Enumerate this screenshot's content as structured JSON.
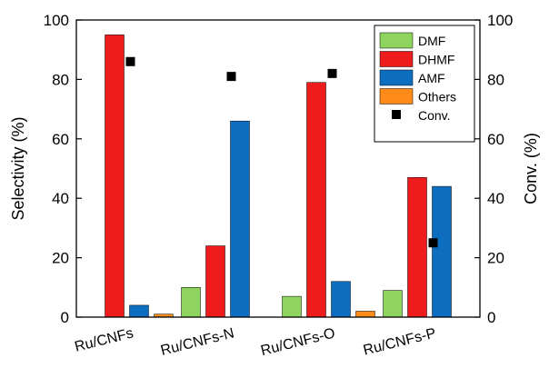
{
  "chart_data": {
    "type": "bar",
    "categories": [
      "Ru/CNFs",
      "Ru/CNFs-N",
      "Ru/CNFs-O",
      "Ru/CNFs-P"
    ],
    "series": [
      {
        "name": "DMF",
        "color": "#8fd45f",
        "values": [
          0,
          10,
          7,
          9
        ]
      },
      {
        "name": "DHMF",
        "color": "#ee1c1c",
        "values": [
          95,
          24,
          79,
          47
        ]
      },
      {
        "name": "AMF",
        "color": "#0d6ebf",
        "values": [
          4,
          66,
          12,
          44
        ]
      },
      {
        "name": "Others",
        "color": "#ff8c1a",
        "values": [
          1,
          0,
          2,
          0
        ]
      }
    ],
    "conversion": {
      "name": "Conv.",
      "marker": "square",
      "color": "#000000",
      "values": [
        86,
        81,
        82,
        25
      ]
    },
    "ylabel_left": "Selectivity (%)",
    "ylabel_right": "Conv. (%)",
    "ylim_left": [
      0,
      100
    ],
    "ylim_right": [
      0,
      100
    ],
    "y_ticks": [
      0,
      20,
      40,
      60,
      80,
      100
    ],
    "legend_position": "top-right",
    "grid": false
  }
}
